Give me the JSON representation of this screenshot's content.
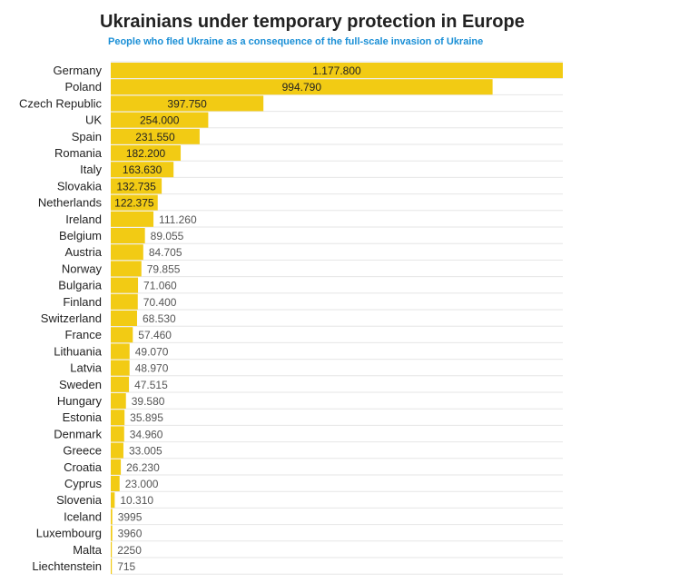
{
  "colors": {
    "bar": "#f2cb14",
    "gridline": "#e6e6e6",
    "subtitle": "#1a8fd6"
  },
  "chart_data": {
    "type": "bar",
    "orientation": "horizontal",
    "title": "Ukrainians under temporary protection in Europe",
    "subtitle": "People who fled Ukraine as a consequence of the full-scale invasion of Ukraine",
    "categories": [
      "Germany",
      "Poland",
      "Czech Republic",
      "UK",
      "Spain",
      "Romania",
      "Italy",
      "Slovakia",
      "Netherlands",
      "Ireland",
      "Belgium",
      "Austria",
      "Norway",
      "Bulgaria",
      "Finland",
      "Switzerland",
      "France",
      "Lithuania",
      "Latvia",
      "Sweden",
      "Hungary",
      "Estonia",
      "Denmark",
      "Greece",
      "Croatia",
      "Cyprus",
      "Slovenia",
      "Iceland",
      "Luxembourg",
      "Malta",
      "Liechtenstein"
    ],
    "values": [
      1177800,
      994790,
      397750,
      254000,
      231550,
      182200,
      163630,
      132735,
      122375,
      111260,
      89055,
      84705,
      79855,
      71060,
      70400,
      68530,
      57460,
      49070,
      48970,
      47515,
      39580,
      35895,
      34960,
      33005,
      26230,
      23000,
      10310,
      3995,
      3960,
      2250,
      715
    ],
    "value_labels": [
      "1.177.800",
      "994.790",
      "397.750",
      "254.000",
      "231.550",
      "182.200",
      "163.630",
      "132.735",
      "122.375",
      "111.260",
      "89.055",
      "84.705",
      "79.855",
      "71.060",
      "70.400",
      "68.530",
      "57.460",
      "49.070",
      "48.970",
      "47.515",
      "39.580",
      "35.895",
      "34.960",
      "33.005",
      "26.230",
      "23.000",
      "10.310",
      "3995",
      "3960",
      "2250",
      "715"
    ],
    "label_inside_count": 9,
    "grid": "horizontal row lines"
  }
}
